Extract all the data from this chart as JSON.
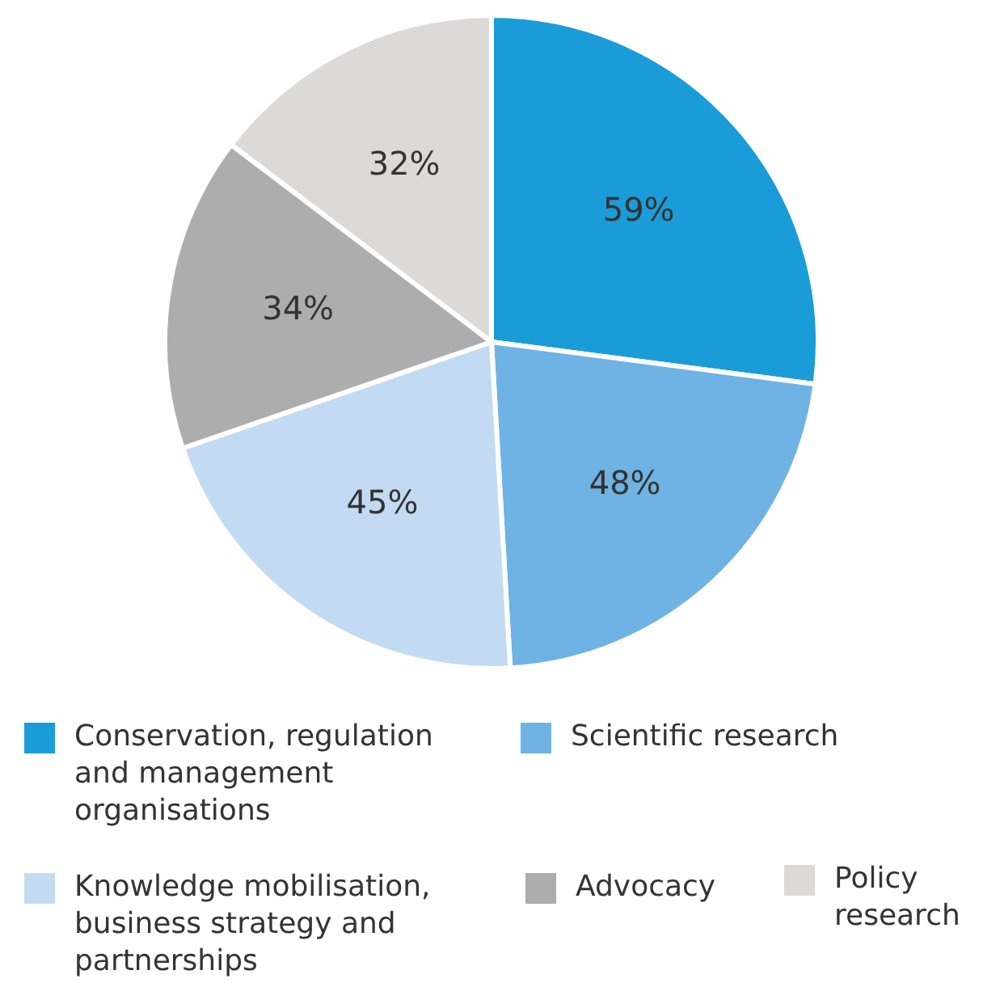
{
  "chart_data": {
    "type": "pie",
    "categories": [
      "Conservation, regulation and management organisations",
      "Scientific research",
      "Knowledge mobilisation, business strategy and partnerships",
      "Advocacy",
      "Policy research"
    ],
    "values": [
      59,
      48,
      45,
      34,
      32
    ],
    "value_labels": [
      "59%",
      "48%",
      "45%",
      "34%",
      "32%"
    ],
    "colors": [
      "#1a9cd8",
      "#6eb3e3",
      "#c3dbf2",
      "#adadad",
      "#dcdad8"
    ],
    "legend": "bottom"
  }
}
